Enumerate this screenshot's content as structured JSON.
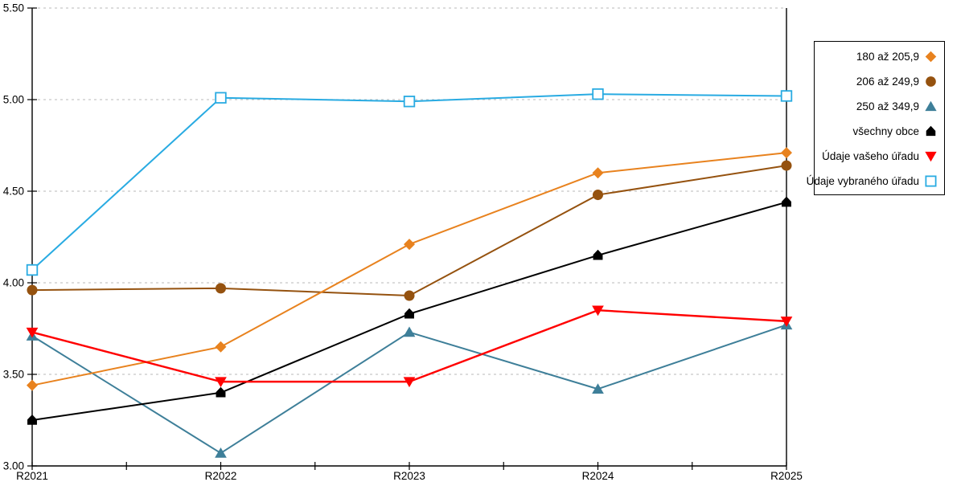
{
  "chart_data": {
    "type": "line",
    "title": "",
    "xlabel": "",
    "ylabel": "",
    "x_categories": [
      "R2021",
      "R2022",
      "R2023",
      "R2024",
      "R2025"
    ],
    "ylim": [
      3.0,
      5.5
    ],
    "ytick_step": 0.5,
    "ytick_labels": [
      "3.00",
      "3.50",
      "4.00",
      "4.50",
      "5.00",
      "5.50"
    ],
    "grid": "horizontal-dashed",
    "legend_position": "right-outside",
    "series": [
      {
        "name": "180 až 205,9",
        "marker": "diamond",
        "color": "#E8821E",
        "line_width": 2,
        "values": [
          3.44,
          3.65,
          4.21,
          4.6,
          4.71
        ]
      },
      {
        "name": "206 až 249,9",
        "marker": "circle",
        "color": "#95520F",
        "line_width": 2,
        "values": [
          3.96,
          3.97,
          3.93,
          4.48,
          4.64
        ]
      },
      {
        "name": "250 až 349,9",
        "marker": "triangle-up",
        "color": "#3E7F99",
        "line_width": 2,
        "values": [
          3.71,
          3.07,
          3.73,
          3.42,
          3.77
        ]
      },
      {
        "name": "všechny obce",
        "marker": "pentagon",
        "color": "#000000",
        "line_width": 2,
        "values": [
          3.25,
          3.4,
          3.83,
          4.15,
          4.44
        ]
      },
      {
        "name": "Údaje vašeho úřadu",
        "marker": "triangle-down",
        "color": "#FF0000",
        "line_width": 2.4,
        "values": [
          3.73,
          3.46,
          3.46,
          3.85,
          3.79
        ]
      },
      {
        "name": "Údaje vybraného úřadu",
        "marker": "open-square",
        "color": "#29ABE2",
        "line_width": 2,
        "values": [
          4.07,
          5.01,
          4.99,
          5.03,
          5.02
        ]
      }
    ],
    "colors": {
      "grid": "#C6C6C6",
      "axis": "#000000",
      "background": "#FFFFFF"
    }
  }
}
